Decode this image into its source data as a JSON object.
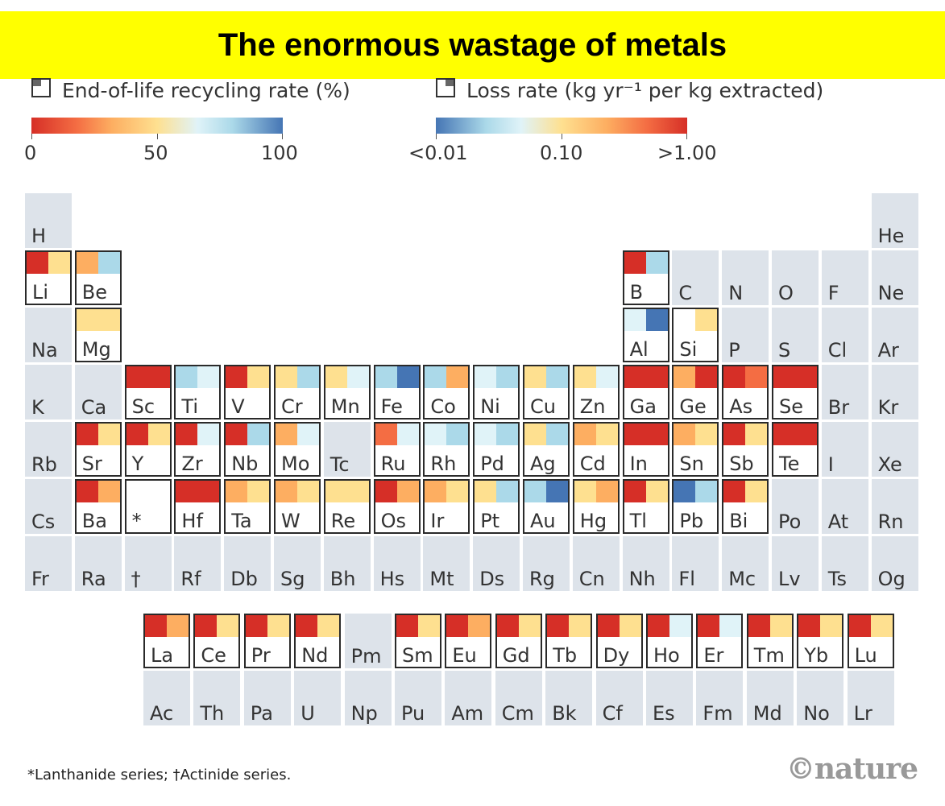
{
  "title": "The enormous wastage of metals",
  "legend": {
    "recycling": {
      "label": "End-of-life recycling rate (%)",
      "ticks": [
        "0",
        "50",
        "100"
      ],
      "icon": "square-top-left-icon"
    },
    "loss": {
      "label": "Loss rate (kg yr⁻¹ per kg extracted)",
      "ticks": [
        "<0.01",
        "0.10",
        ">1.00"
      ],
      "icon": "square-top-right-icon"
    }
  },
  "colors": {
    "red": "#d62f27",
    "orange": "#f46d43",
    "light_orange": "#fdae61",
    "yellow": "#fee090",
    "pale": "#e0f3f8",
    "light_blue": "#abd9e9",
    "blue": "#4575b4",
    "cell_bg": "#dde3ea"
  },
  "elements": [
    {
      "s": "H",
      "r": 1,
      "c": 1
    },
    {
      "s": "He",
      "r": 1,
      "c": 18
    },
    {
      "s": "Li",
      "r": 2,
      "c": 1,
      "rec": "red",
      "loss": "yellow"
    },
    {
      "s": "Be",
      "r": 2,
      "c": 2,
      "rec": "light_orange",
      "loss": "light_blue"
    },
    {
      "s": "B",
      "r": 2,
      "c": 13,
      "rec": "red",
      "loss": "light_blue"
    },
    {
      "s": "C",
      "r": 2,
      "c": 14
    },
    {
      "s": "N",
      "r": 2,
      "c": 15
    },
    {
      "s": "O",
      "r": 2,
      "c": 16
    },
    {
      "s": "F",
      "r": 2,
      "c": 17
    },
    {
      "s": "Ne",
      "r": 2,
      "c": 18
    },
    {
      "s": "Na",
      "r": 3,
      "c": 1
    },
    {
      "s": "Mg",
      "r": 3,
      "c": 2,
      "rec": "yellow",
      "loss": "yellow"
    },
    {
      "s": "Al",
      "r": 3,
      "c": 13,
      "rec": "pale",
      "loss": "blue"
    },
    {
      "s": "Si",
      "r": 3,
      "c": 14,
      "rec": "white",
      "loss": "yellow"
    },
    {
      "s": "P",
      "r": 3,
      "c": 15
    },
    {
      "s": "S",
      "r": 3,
      "c": 16
    },
    {
      "s": "Cl",
      "r": 3,
      "c": 17
    },
    {
      "s": "Ar",
      "r": 3,
      "c": 18
    },
    {
      "s": "K",
      "r": 4,
      "c": 1
    },
    {
      "s": "Ca",
      "r": 4,
      "c": 2
    },
    {
      "s": "Sc",
      "r": 4,
      "c": 3,
      "rec": "red",
      "loss": "red"
    },
    {
      "s": "Ti",
      "r": 4,
      "c": 4,
      "rec": "light_blue",
      "loss": "pale"
    },
    {
      "s": "V",
      "r": 4,
      "c": 5,
      "rec": "red",
      "loss": "yellow"
    },
    {
      "s": "Cr",
      "r": 4,
      "c": 6,
      "rec": "yellow",
      "loss": "light_blue"
    },
    {
      "s": "Mn",
      "r": 4,
      "c": 7,
      "rec": "yellow",
      "loss": "pale"
    },
    {
      "s": "Fe",
      "r": 4,
      "c": 8,
      "rec": "light_blue",
      "loss": "blue"
    },
    {
      "s": "Co",
      "r": 4,
      "c": 9,
      "rec": "light_blue",
      "loss": "light_orange"
    },
    {
      "s": "Ni",
      "r": 4,
      "c": 10,
      "rec": "pale",
      "loss": "light_blue"
    },
    {
      "s": "Cu",
      "r": 4,
      "c": 11,
      "rec": "yellow",
      "loss": "light_blue"
    },
    {
      "s": "Zn",
      "r": 4,
      "c": 12,
      "rec": "yellow",
      "loss": "pale"
    },
    {
      "s": "Ga",
      "r": 4,
      "c": 13,
      "rec": "red",
      "loss": "red"
    },
    {
      "s": "Ge",
      "r": 4,
      "c": 14,
      "rec": "light_orange",
      "loss": "red"
    },
    {
      "s": "As",
      "r": 4,
      "c": 15,
      "rec": "red",
      "loss": "orange"
    },
    {
      "s": "Se",
      "r": 4,
      "c": 16,
      "rec": "red",
      "loss": "red"
    },
    {
      "s": "Br",
      "r": 4,
      "c": 17
    },
    {
      "s": "Kr",
      "r": 4,
      "c": 18
    },
    {
      "s": "Rb",
      "r": 5,
      "c": 1
    },
    {
      "s": "Sr",
      "r": 5,
      "c": 2,
      "rec": "red",
      "loss": "yellow"
    },
    {
      "s": "Y",
      "r": 5,
      "c": 3,
      "rec": "red",
      "loss": "yellow"
    },
    {
      "s": "Zr",
      "r": 5,
      "c": 4,
      "rec": "red",
      "loss": "pale"
    },
    {
      "s": "Nb",
      "r": 5,
      "c": 5,
      "rec": "red",
      "loss": "light_blue"
    },
    {
      "s": "Mo",
      "r": 5,
      "c": 6,
      "rec": "light_orange",
      "loss": "pale"
    },
    {
      "s": "Tc",
      "r": 5,
      "c": 7
    },
    {
      "s": "Ru",
      "r": 5,
      "c": 8,
      "rec": "orange",
      "loss": "pale"
    },
    {
      "s": "Rh",
      "r": 5,
      "c": 9,
      "rec": "pale",
      "loss": "light_blue"
    },
    {
      "s": "Pd",
      "r": 5,
      "c": 10,
      "rec": "pale",
      "loss": "light_blue"
    },
    {
      "s": "Ag",
      "r": 5,
      "c": 11,
      "rec": "yellow",
      "loss": "light_blue"
    },
    {
      "s": "Cd",
      "r": 5,
      "c": 12,
      "rec": "light_orange",
      "loss": "yellow"
    },
    {
      "s": "In",
      "r": 5,
      "c": 13,
      "rec": "red",
      "loss": "red"
    },
    {
      "s": "Sn",
      "r": 5,
      "c": 14,
      "rec": "light_orange",
      "loss": "yellow"
    },
    {
      "s": "Sb",
      "r": 5,
      "c": 15,
      "rec": "red",
      "loss": "yellow"
    },
    {
      "s": "Te",
      "r": 5,
      "c": 16,
      "rec": "red",
      "loss": "red"
    },
    {
      "s": "I",
      "r": 5,
      "c": 17
    },
    {
      "s": "Xe",
      "r": 5,
      "c": 18
    },
    {
      "s": "Cs",
      "r": 6,
      "c": 1
    },
    {
      "s": "Ba",
      "r": 6,
      "c": 2,
      "rec": "red",
      "loss": "light_orange"
    },
    {
      "s": "*",
      "r": 6,
      "c": 3,
      "rec": "white",
      "loss": "white"
    },
    {
      "s": "Hf",
      "r": 6,
      "c": 4,
      "rec": "red",
      "loss": "red"
    },
    {
      "s": "Ta",
      "r": 6,
      "c": 5,
      "rec": "light_orange",
      "loss": "yellow"
    },
    {
      "s": "W",
      "r": 6,
      "c": 6,
      "rec": "light_orange",
      "loss": "yellow"
    },
    {
      "s": "Re",
      "r": 6,
      "c": 7,
      "rec": "yellow",
      "loss": "yellow"
    },
    {
      "s": "Os",
      "r": 6,
      "c": 8,
      "rec": "red",
      "loss": "light_orange"
    },
    {
      "s": "Ir",
      "r": 6,
      "c": 9,
      "rec": "light_orange",
      "loss": "yellow"
    },
    {
      "s": "Pt",
      "r": 6,
      "c": 10,
      "rec": "yellow",
      "loss": "light_blue"
    },
    {
      "s": "Au",
      "r": 6,
      "c": 11,
      "rec": "light_blue",
      "loss": "blue"
    },
    {
      "s": "Hg",
      "r": 6,
      "c": 12,
      "rec": "yellow",
      "loss": "light_orange"
    },
    {
      "s": "Tl",
      "r": 6,
      "c": 13,
      "rec": "red",
      "loss": "yellow"
    },
    {
      "s": "Pb",
      "r": 6,
      "c": 14,
      "rec": "blue",
      "loss": "light_blue"
    },
    {
      "s": "Bi",
      "r": 6,
      "c": 15,
      "rec": "red",
      "loss": "yellow"
    },
    {
      "s": "Po",
      "r": 6,
      "c": 16
    },
    {
      "s": "At",
      "r": 6,
      "c": 17
    },
    {
      "s": "Rn",
      "r": 6,
      "c": 18
    },
    {
      "s": "Fr",
      "r": 7,
      "c": 1
    },
    {
      "s": "Ra",
      "r": 7,
      "c": 2
    },
    {
      "s": "†",
      "r": 7,
      "c": 3
    },
    {
      "s": "Rf",
      "r": 7,
      "c": 4
    },
    {
      "s": "Db",
      "r": 7,
      "c": 5
    },
    {
      "s": "Sg",
      "r": 7,
      "c": 6
    },
    {
      "s": "Bh",
      "r": 7,
      "c": 7
    },
    {
      "s": "Hs",
      "r": 7,
      "c": 8
    },
    {
      "s": "Mt",
      "r": 7,
      "c": 9
    },
    {
      "s": "Ds",
      "r": 7,
      "c": 10
    },
    {
      "s": "Rg",
      "r": 7,
      "c": 11
    },
    {
      "s": "Cn",
      "r": 7,
      "c": 12
    },
    {
      "s": "Nh",
      "r": 7,
      "c": 13
    },
    {
      "s": "Fl",
      "r": 7,
      "c": 14
    },
    {
      "s": "Mc",
      "r": 7,
      "c": 15
    },
    {
      "s": "Lv",
      "r": 7,
      "c": 16
    },
    {
      "s": "Ts",
      "r": 7,
      "c": 17
    },
    {
      "s": "Og",
      "r": 7,
      "c": 18
    },
    {
      "s": "La",
      "r": 8,
      "c": 1,
      "rec": "red",
      "loss": "light_orange"
    },
    {
      "s": "Ce",
      "r": 8,
      "c": 2,
      "rec": "red",
      "loss": "yellow"
    },
    {
      "s": "Pr",
      "r": 8,
      "c": 3,
      "rec": "red",
      "loss": "yellow"
    },
    {
      "s": "Nd",
      "r": 8,
      "c": 4,
      "rec": "red",
      "loss": "yellow"
    },
    {
      "s": "Pm",
      "r": 8,
      "c": 5
    },
    {
      "s": "Sm",
      "r": 8,
      "c": 6,
      "rec": "red",
      "loss": "yellow"
    },
    {
      "s": "Eu",
      "r": 8,
      "c": 7,
      "rec": "red",
      "loss": "light_orange"
    },
    {
      "s": "Gd",
      "r": 8,
      "c": 8,
      "rec": "red",
      "loss": "yellow"
    },
    {
      "s": "Tb",
      "r": 8,
      "c": 9,
      "rec": "red",
      "loss": "yellow"
    },
    {
      "s": "Dy",
      "r": 8,
      "c": 10,
      "rec": "red",
      "loss": "yellow"
    },
    {
      "s": "Ho",
      "r": 8,
      "c": 11,
      "rec": "red",
      "loss": "pale"
    },
    {
      "s": "Er",
      "r": 8,
      "c": 12,
      "rec": "red",
      "loss": "pale"
    },
    {
      "s": "Tm",
      "r": 8,
      "c": 13,
      "rec": "red",
      "loss": "yellow"
    },
    {
      "s": "Yb",
      "r": 8,
      "c": 14,
      "rec": "red",
      "loss": "yellow"
    },
    {
      "s": "Lu",
      "r": 8,
      "c": 15,
      "rec": "red",
      "loss": "yellow"
    },
    {
      "s": "Ac",
      "r": 9,
      "c": 1
    },
    {
      "s": "Th",
      "r": 9,
      "c": 2
    },
    {
      "s": "Pa",
      "r": 9,
      "c": 3
    },
    {
      "s": "U",
      "r": 9,
      "c": 4
    },
    {
      "s": "Np",
      "r": 9,
      "c": 5
    },
    {
      "s": "Pu",
      "r": 9,
      "c": 6
    },
    {
      "s": "Am",
      "r": 9,
      "c": 7
    },
    {
      "s": "Cm",
      "r": 9,
      "c": 8
    },
    {
      "s": "Bk",
      "r": 9,
      "c": 9
    },
    {
      "s": "Cf",
      "r": 9,
      "c": 10
    },
    {
      "s": "Es",
      "r": 9,
      "c": 11
    },
    {
      "s": "Fm",
      "r": 9,
      "c": 12
    },
    {
      "s": "Md",
      "r": 9,
      "c": 13
    },
    {
      "s": "No",
      "r": 9,
      "c": 14
    },
    {
      "s": "Lr",
      "r": 9,
      "c": 15
    }
  ],
  "footnote": "*Lanthanide series; †Actinide series.",
  "logo": "©nature"
}
